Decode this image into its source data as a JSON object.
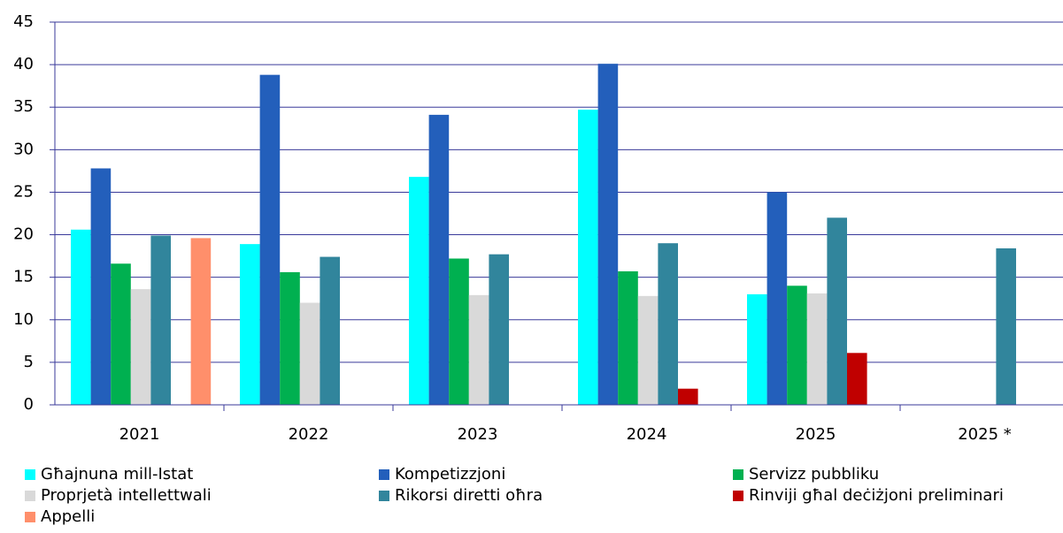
{
  "chart_data": {
    "type": "bar",
    "categories": [
      "2021",
      "2022",
      "2023",
      "2024",
      "2025",
      "2025 *"
    ],
    "series": [
      {
        "name": "Għajnuna mill-Istat",
        "color": "#00ffff",
        "values": [
          20.6,
          18.9,
          26.8,
          34.7,
          13.0,
          null
        ]
      },
      {
        "name": "Kompetizzjoni",
        "color": "#235fbb",
        "values": [
          27.8,
          38.8,
          34.1,
          40.1,
          25.0,
          null
        ]
      },
      {
        "name": "Servizz pubbliku",
        "color": "#00b050",
        "values": [
          16.6,
          15.6,
          17.2,
          15.7,
          14.0,
          null
        ]
      },
      {
        "name": "Proprjetà intellettwali",
        "color": "#d9d9d9",
        "values": [
          13.6,
          12.0,
          12.9,
          12.8,
          13.1,
          null
        ]
      },
      {
        "name": "Rikorsi diretti oħra",
        "color": "#31859c",
        "values": [
          19.9,
          17.4,
          17.7,
          19.0,
          22.0,
          18.4
        ]
      },
      {
        "name": "Rinviji għal deċiżjoni preliminari",
        "color": "#c00000",
        "values": [
          null,
          null,
          null,
          1.9,
          6.1,
          null
        ]
      },
      {
        "name": "Appelli",
        "color": "#ff8f6b",
        "values": [
          19.6,
          null,
          null,
          null,
          null,
          null
        ]
      }
    ],
    "ylim": [
      0,
      45
    ],
    "yticks": [
      0,
      5,
      10,
      15,
      20,
      25,
      30,
      35,
      40,
      45
    ],
    "grid": true
  }
}
